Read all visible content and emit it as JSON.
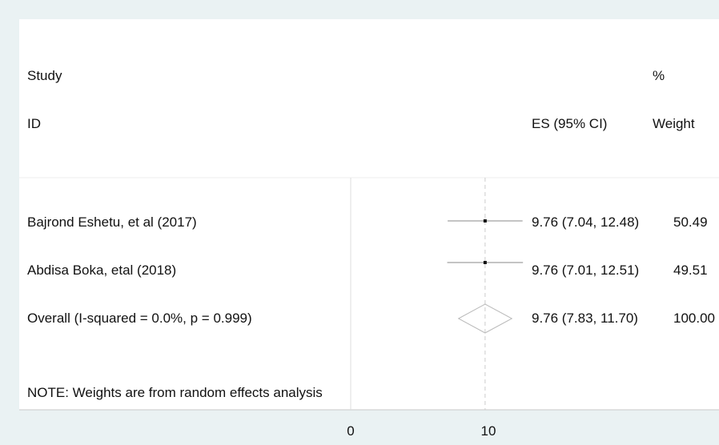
{
  "chart_data": {
    "type": "forest",
    "header": {
      "study_line1": "Study",
      "study_line2": "ID",
      "es_label": "ES (95% CI)",
      "weight_line1": "%",
      "weight_line2": "Weight"
    },
    "studies": [
      {
        "label": "Bajrond Eshetu, et al (2017)",
        "es": 9.76,
        "lo": 7.04,
        "hi": 12.48,
        "ci_text": "9.76 (7.04, 12.48)",
        "weight": "50.49"
      },
      {
        "label": "Abdisa Boka, etal (2018)",
        "es": 9.76,
        "lo": 7.01,
        "hi": 12.51,
        "ci_text": "9.76 (7.01, 12.51)",
        "weight": "49.51"
      }
    ],
    "overall": {
      "label": "Overall  (I-squared = 0.0%, p = 0.999)",
      "es": 9.76,
      "lo": 7.83,
      "hi": 11.7,
      "ci_text": "9.76 (7.83, 11.70)",
      "weight": "100.00"
    },
    "note": "NOTE: Weights are from random effects analysis",
    "x_ticks": [
      0,
      10
    ],
    "null_value": 0,
    "xlim": [
      0,
      12.48
    ]
  }
}
